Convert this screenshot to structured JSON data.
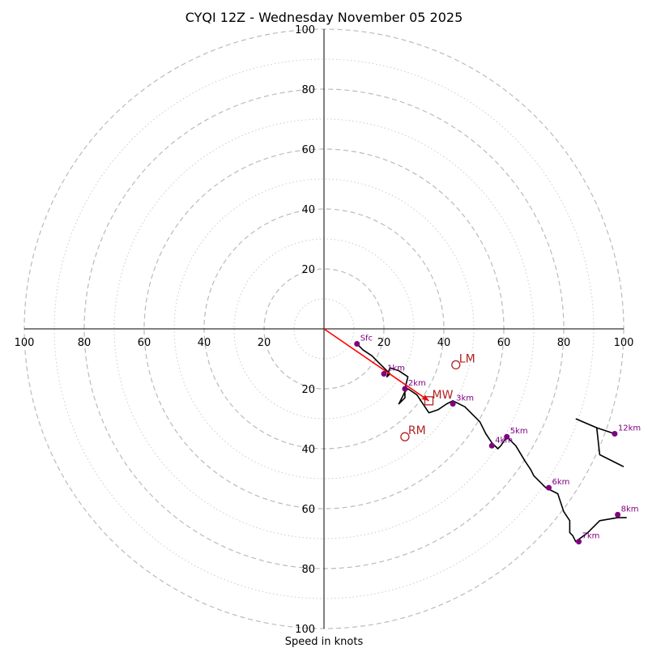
{
  "chart_data": {
    "type": "scatter",
    "subtype": "hodograph",
    "title": "CYQI 12Z - Wednesday November 05 2025",
    "xlabel": "Speed in knots",
    "ylabel": "",
    "xlim": [
      -100,
      100
    ],
    "ylim": [
      -100,
      100
    ],
    "grid": true,
    "rings": [
      10,
      20,
      30,
      40,
      50,
      60,
      70,
      80,
      90,
      100
    ],
    "major_rings": [
      20,
      40,
      60,
      80,
      100
    ],
    "tick_labels": [
      "100",
      "80",
      "60",
      "40",
      "20",
      "20",
      "40",
      "60",
      "80",
      "100"
    ],
    "x_tick_values": [
      -100,
      -80,
      -60,
      -40,
      -20,
      20,
      40,
      60,
      80,
      100
    ],
    "y_tick_labels": [
      "100",
      "80",
      "60",
      "40",
      "20",
      "20",
      "40",
      "60",
      "80",
      "100"
    ],
    "y_tick_values": [
      100,
      80,
      60,
      40,
      20,
      -20,
      -40,
      -60,
      -80,
      -100
    ],
    "colors": {
      "trace": "#000000",
      "points": "#800080",
      "motion": "#b22222",
      "mean_wind_vector": "#ff0000",
      "grid": "#bbbbbb"
    },
    "hodograph_trace": [
      [
        11,
        -5
      ],
      [
        13,
        -7
      ],
      [
        16,
        -9
      ],
      [
        19,
        -12
      ],
      [
        22,
        -15
      ],
      [
        21,
        -16
      ],
      [
        22,
        -13
      ],
      [
        25,
        -14
      ],
      [
        28,
        -16
      ],
      [
        27,
        -20
      ],
      [
        27,
        -23
      ],
      [
        25,
        -25
      ],
      [
        27,
        -21
      ],
      [
        28,
        -20
      ],
      [
        31,
        -22
      ],
      [
        35,
        -28
      ],
      [
        38,
        -27
      ],
      [
        41,
        -25
      ],
      [
        43,
        -24
      ],
      [
        47,
        -26
      ],
      [
        52,
        -31
      ],
      [
        54,
        -35
      ],
      [
        56,
        -38
      ],
      [
        58,
        -40
      ],
      [
        59,
        -39
      ],
      [
        61,
        -36
      ],
      [
        62,
        -37
      ],
      [
        64,
        -39
      ],
      [
        67,
        -44
      ],
      [
        69,
        -47
      ],
      [
        70,
        -49
      ],
      [
        74,
        -53
      ],
      [
        78,
        -55
      ],
      [
        80,
        -61
      ],
      [
        82,
        -64
      ],
      [
        82,
        -68
      ],
      [
        83,
        -69
      ],
      [
        84,
        -71
      ],
      [
        88,
        -68
      ],
      [
        92,
        -64
      ],
      [
        98,
        -63
      ],
      [
        101,
        -63
      ]
    ],
    "upper_trace": [
      [
        84,
        -30
      ],
      [
        91,
        -33
      ],
      [
        92,
        -42
      ],
      [
        100,
        -46
      ]
    ],
    "upper_stub": [
      [
        91,
        -33
      ],
      [
        97,
        -35
      ]
    ],
    "height_points": [
      {
        "label": "Sfc",
        "u": 11,
        "v": -5
      },
      {
        "label": "1km",
        "u": 20,
        "v": -15
      },
      {
        "label": "2km",
        "u": 27,
        "v": -20
      },
      {
        "label": "3km",
        "u": 43,
        "v": -25
      },
      {
        "label": "4km",
        "u": 56,
        "v": -39
      },
      {
        "label": "5km",
        "u": 61,
        "v": -36
      },
      {
        "label": "6km",
        "u": 75,
        "v": -53
      },
      {
        "label": "7km",
        "u": 85,
        "v": -71
      },
      {
        "label": "8km",
        "u": 98,
        "v": -62
      },
      {
        "label": "12km",
        "u": 97,
        "v": -35
      }
    ],
    "storm_motion": [
      {
        "label": "LM",
        "u": 44,
        "v": -12,
        "marker": "circle"
      },
      {
        "label": "RM",
        "u": 27,
        "v": -36,
        "marker": "circle"
      },
      {
        "label": "MW",
        "u": 35,
        "v": -24,
        "marker": "square"
      }
    ],
    "mean_wind_vector": {
      "from": [
        0,
        0
      ],
      "to": [
        35,
        -24
      ]
    }
  }
}
